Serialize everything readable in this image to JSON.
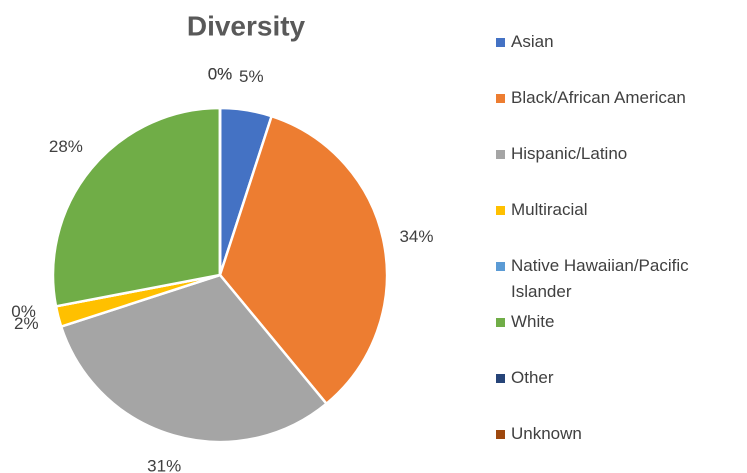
{
  "chart_data": {
    "type": "pie",
    "title": "Diversity",
    "categories": [
      "Asian",
      "Black/African American",
      "Hispanic/Latino",
      "Multiracial",
      "Native Hawaiian/Pacific Islander",
      "White",
      "Other",
      "Unknown"
    ],
    "values": [
      5,
      34,
      31,
      2,
      0,
      28,
      0,
      0
    ],
    "value_labels": [
      "5%",
      "34%",
      "31%",
      "2%",
      "0%",
      "28%",
      "0%",
      "0%"
    ],
    "colors": [
      "#4472c4",
      "#ed7d31",
      "#a5a5a5",
      "#ffc000",
      "#5b9bd5",
      "#70ad47",
      "#264478",
      "#9e480e"
    ],
    "legend": "right"
  }
}
